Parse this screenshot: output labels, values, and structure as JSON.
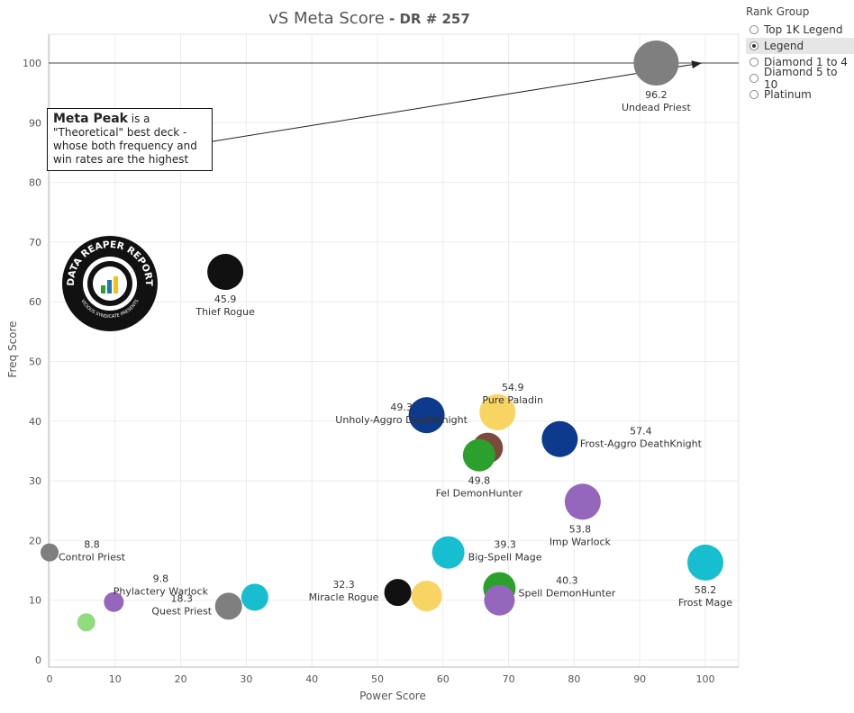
{
  "title_main": "vS Meta Score",
  "title_sub": " - DR # 257",
  "legend": {
    "title": "Rank Group",
    "options": [
      "Top 1K Legend",
      "Legend",
      "Diamond 1 to 4",
      "Diamond 5 to 10",
      "Platinum"
    ],
    "selected": "Legend"
  },
  "callout": {
    "bold": "Meta Peak",
    "text": " is a \"Theoretical\" best deck - whose both frequency and win rates are the highest"
  },
  "logo": {
    "top_text": "DATA REAPER REPORT",
    "bottom_text": "VICIOUS SYNDICATE PRESENTS"
  },
  "chart_data": {
    "type": "scatter",
    "title": "vS Meta Score - DR # 257",
    "xlabel": "Power Score",
    "ylabel": "Freq Score",
    "xlim": [
      0,
      105
    ],
    "ylim": [
      -1,
      105
    ],
    "xticks": [
      0,
      10,
      20,
      30,
      40,
      50,
      60,
      70,
      80,
      90,
      100
    ],
    "yticks": [
      0,
      10,
      20,
      30,
      40,
      50,
      60,
      70,
      80,
      90,
      100
    ],
    "grid": true,
    "reference_line_y": 100,
    "arrow": {
      "from": [
        24,
        86
      ],
      "to": [
        100,
        100
      ]
    },
    "points": [
      {
        "x": 92.5,
        "y": 100,
        "color": "#7f7f7f",
        "score": "96.2",
        "name": "Undead Priest"
      },
      {
        "x": 26.8,
        "y": 65,
        "color": "#111111",
        "score": "45.9",
        "name": "Thief Rogue"
      },
      {
        "x": 57.5,
        "y": 41,
        "color": "#0d3a8c",
        "score": "49.3",
        "name": "Unholy-Aggro DeathKnight"
      },
      {
        "x": 68.3,
        "y": 41.5,
        "color": "#f8d463",
        "score": "54.9",
        "name": "Pure Paladin"
      },
      {
        "x": 77.8,
        "y": 37,
        "color": "#0d3a8c",
        "score": "57.4",
        "name": "Frost-Aggro DeathKnight"
      },
      {
        "x": 66.8,
        "y": 35.5,
        "color": "#7a4a3a",
        "score": "",
        "name": ""
      },
      {
        "x": 65.5,
        "y": 34.3,
        "color": "#2ca02c",
        "score": "49.8",
        "name": "Fel DemonHunter"
      },
      {
        "x": 81.3,
        "y": 26.5,
        "color": "#9467bd",
        "score": "53.8",
        "name": "Imp Warlock"
      },
      {
        "x": 0,
        "y": 18,
        "color": "#7f7f7f",
        "score": "8.8",
        "name": "Control Priest"
      },
      {
        "x": 60.8,
        "y": 18,
        "color": "#17becf",
        "score": "39.3",
        "name": "Big-Spell Mage"
      },
      {
        "x": 100,
        "y": 16.3,
        "color": "#17becf",
        "score": "58.2",
        "name": "Frost Mage"
      },
      {
        "x": 68.6,
        "y": 12,
        "color": "#2ca02c",
        "score": "40.3",
        "name": "Spell DemonHunter"
      },
      {
        "x": 53.1,
        "y": 11.3,
        "color": "#111111",
        "score": "32.3",
        "name": "Miracle Rogue"
      },
      {
        "x": 57.5,
        "y": 10.7,
        "color": "#f8d463",
        "score": "",
        "name": ""
      },
      {
        "x": 68.6,
        "y": 10,
        "color": "#9467bd",
        "score": "",
        "name": ""
      },
      {
        "x": 31.3,
        "y": 10.5,
        "color": "#17becf",
        "score": "",
        "name": ""
      },
      {
        "x": 27.3,
        "y": 9,
        "color": "#7f7f7f",
        "score": "18.3",
        "name": "Quest Priest"
      },
      {
        "x": 9.8,
        "y": 9.7,
        "color": "#9467bd",
        "score": "9.8",
        "name": "Phylactery Warlock"
      },
      {
        "x": 5.6,
        "y": 6.3,
        "color": "#8fdc7f",
        "score": "",
        "name": ""
      }
    ]
  }
}
